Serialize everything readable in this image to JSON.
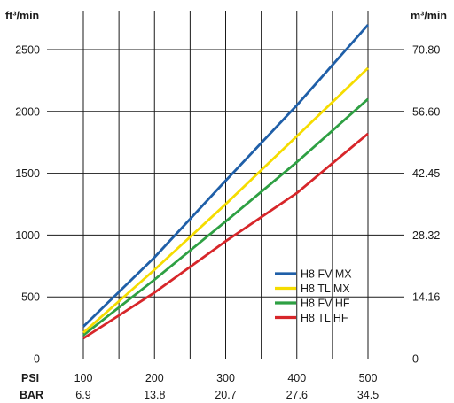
{
  "chart_data": {
    "type": "line",
    "y_left_unit": "ft³/min",
    "y_right_unit": "m³/min",
    "y_left_ticks": [
      "0",
      "500",
      "1000",
      "1500",
      "2000",
      "2500"
    ],
    "y_right_ticks": [
      "0",
      "14.16",
      "28.32",
      "42.45",
      "56.60",
      "70.80"
    ],
    "x_primary_label": "PSI",
    "x_secondary_label": "BAR",
    "x_primary_ticks": [
      "100",
      "200",
      "300",
      "400",
      "500"
    ],
    "x_secondary_ticks": [
      "6.9",
      "13.8",
      "20.7",
      "27.6",
      "34.5"
    ],
    "xlim": [
      100,
      500
    ],
    "ylim": [
      0,
      2700
    ],
    "grid": true,
    "legend_position": "bottom-right",
    "series": [
      {
        "name": "H8 FV MX",
        "color": "#1f5fa8",
        "x": [
          100,
          200,
          300,
          400,
          500
        ],
        "y": [
          260,
          820,
          1440,
          2050,
          2700
        ]
      },
      {
        "name": "H8 TL MX",
        "color": "#f5dc00",
        "x": [
          100,
          200,
          300,
          400,
          500
        ],
        "y": [
          210,
          720,
          1250,
          1800,
          2350
        ]
      },
      {
        "name": "H8 FV HF",
        "color": "#2ea043",
        "x": [
          100,
          200,
          300,
          400,
          500
        ],
        "y": [
          190,
          640,
          1110,
          1590,
          2100
        ]
      },
      {
        "name": "H8 TL HF",
        "color": "#d7262a",
        "x": [
          100,
          200,
          300,
          400,
          500
        ],
        "y": [
          165,
          535,
          950,
          1340,
          1820
        ]
      }
    ]
  }
}
